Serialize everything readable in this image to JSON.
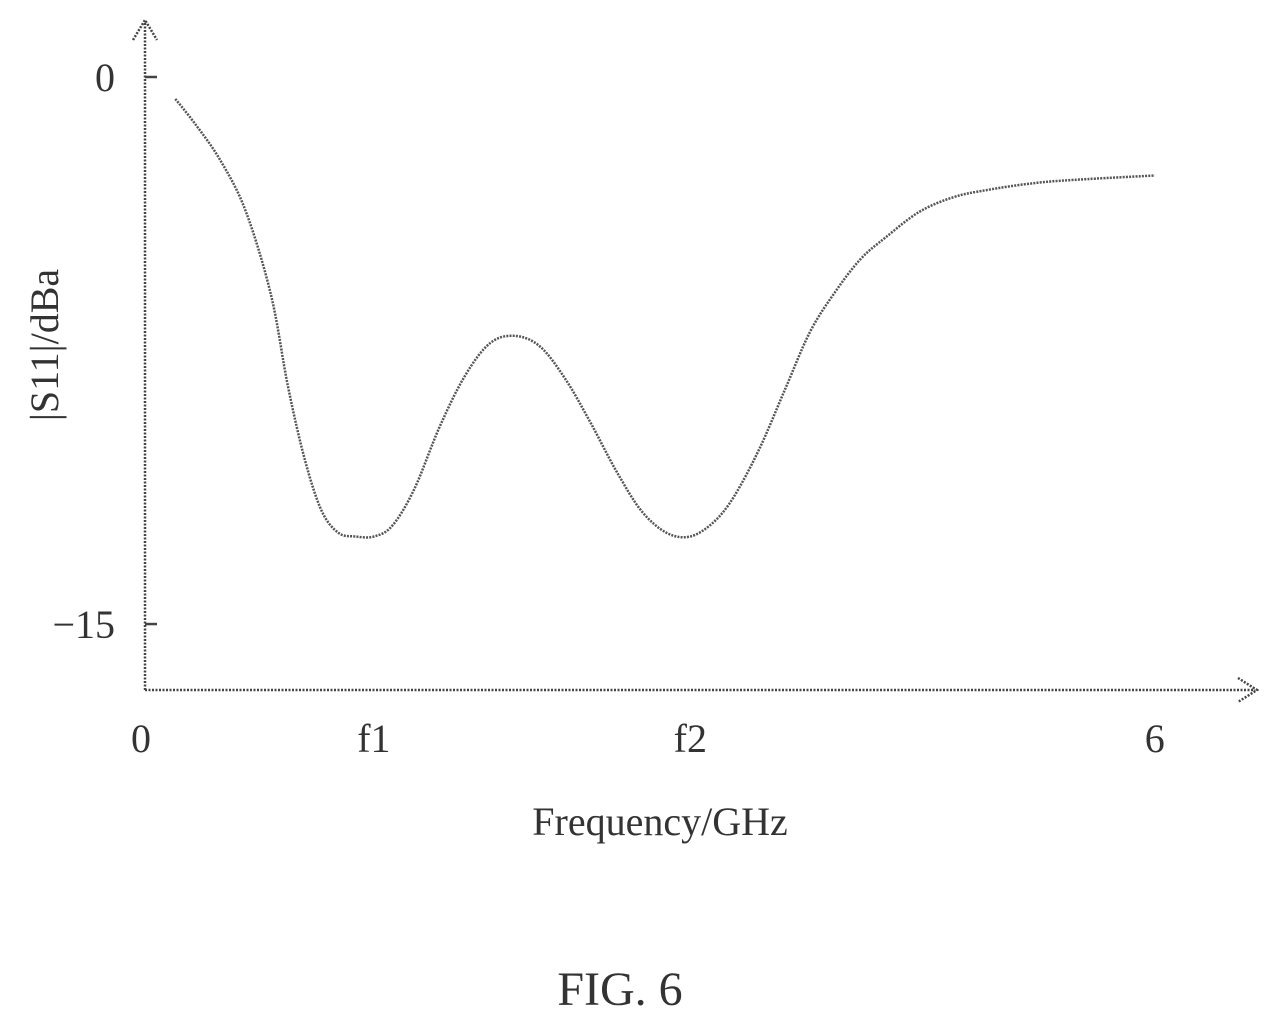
{
  "chart_data": {
    "type": "line",
    "title": "",
    "xlabel": "Frequency/GHz",
    "ylabel": "|S11|/dBa",
    "xlim": [
      0,
      6.5
    ],
    "ylim": [
      -18.5,
      1.6
    ],
    "x_ticks": [
      {
        "value": 0,
        "label": "0"
      },
      {
        "value": 1.36,
        "label": "f1"
      },
      {
        "value": 3.24,
        "label": "f2"
      },
      {
        "value": 6,
        "label": "6"
      }
    ],
    "y_ticks": [
      {
        "value": 0,
        "label": "0"
      },
      {
        "value": -15,
        "label": "−15"
      }
    ],
    "grid": false,
    "legend": "none",
    "series": [
      {
        "x": [
          0.18,
          0.3,
          0.45,
          0.6,
          0.75,
          0.85,
          0.95,
          1.05,
          1.15,
          1.25,
          1.36,
          1.47,
          1.6,
          1.75,
          1.9,
          2.05,
          2.2,
          2.35,
          2.5,
          2.65,
          2.8,
          2.95,
          3.1,
          3.24,
          3.38,
          3.5,
          3.65,
          3.8,
          3.95,
          4.1,
          4.25,
          4.4,
          4.6,
          4.8,
          5.0,
          5.3,
          5.6,
          6.0
        ],
        "y": [
          -0.6,
          -1.3,
          -2.3,
          -3.7,
          -6.0,
          -8.5,
          -10.5,
          -11.9,
          -12.5,
          -12.6,
          -12.6,
          -12.3,
          -11.3,
          -9.6,
          -8.2,
          -7.3,
          -7.1,
          -7.4,
          -8.3,
          -9.5,
          -10.8,
          -11.9,
          -12.5,
          -12.6,
          -12.2,
          -11.5,
          -10.2,
          -8.6,
          -7.0,
          -5.9,
          -5.0,
          -4.4,
          -3.7,
          -3.3,
          -3.1,
          -2.9,
          -2.8,
          -2.7
        ]
      }
    ]
  },
  "caption": "FIG. 6"
}
